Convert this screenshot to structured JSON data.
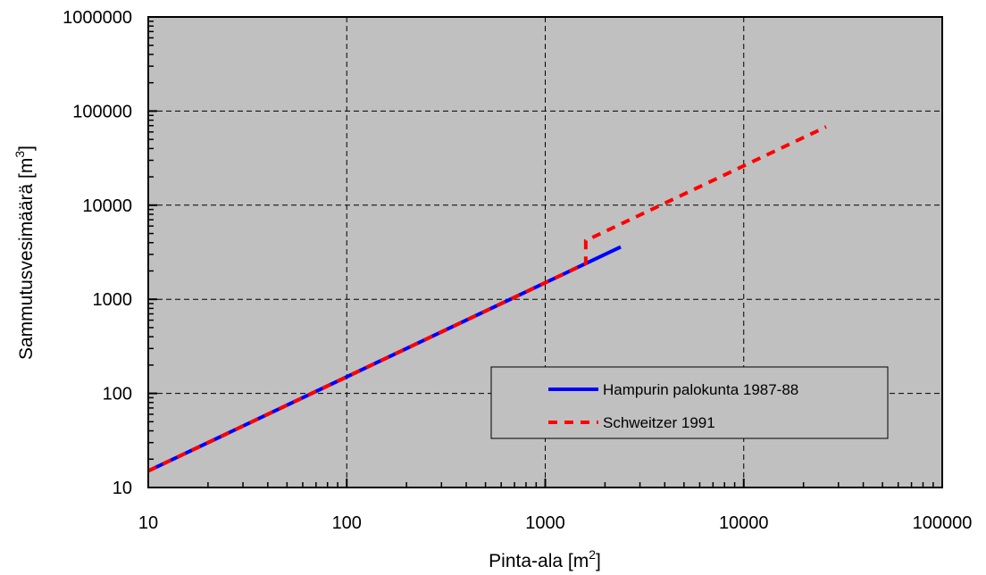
{
  "chart_data": {
    "type": "line",
    "xscale": "log",
    "yscale": "log",
    "xlim": [
      10,
      100000
    ],
    "ylim": [
      10,
      1000000
    ],
    "x_ticks": [
      "10",
      "100",
      "1000",
      "10000",
      "100000"
    ],
    "y_ticks": [
      "10",
      "100",
      "1000",
      "10000",
      "100000",
      "1000000"
    ],
    "xlabel": {
      "text": "Pinta-ala  [m",
      "sup": "2",
      "tail": "]"
    },
    "ylabel": {
      "text": "Sammutusvesimäärä  [m",
      "sup": "3",
      "tail": "]"
    },
    "grid": true,
    "plot_background": "#c0c0c0",
    "legend_position": "lower-right",
    "series": [
      {
        "name": "Hampurin palokunta 1987-88",
        "color": "#0000ff",
        "style": "solid",
        "x": [
          10,
          2400
        ],
        "y": [
          15,
          3600
        ]
      },
      {
        "name": "Schweitzer 1991",
        "color": "#ff0000",
        "style": "dashed",
        "x": [
          10,
          1600,
          1600,
          1600,
          26000
        ],
        "y": [
          15,
          2400,
          2400,
          4200,
          68000
        ]
      }
    ]
  }
}
